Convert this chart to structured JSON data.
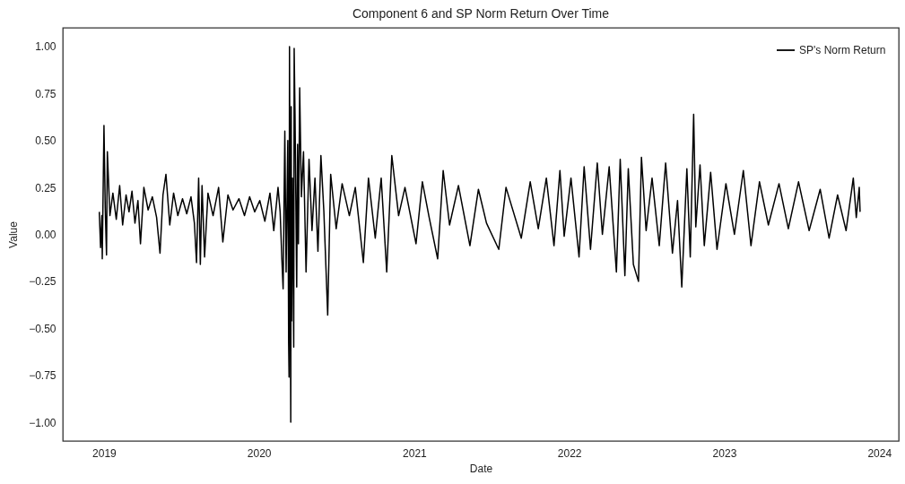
{
  "chart_data": {
    "type": "line",
    "title": "Component 6 and SP Norm Return Over Time",
    "xlabel": "Date",
    "ylabel": "Value",
    "xlim": [
      "2018-09-26",
      "2024-02-16"
    ],
    "xticks": [
      "2019",
      "2020",
      "2021",
      "2022",
      "2023",
      "2024"
    ],
    "ylim": [
      -1.1,
      1.1
    ],
    "yticks": [
      {
        "value": -1,
        "label": "−1.00"
      },
      {
        "value": -0.75,
        "label": "−0.75"
      },
      {
        "value": -0.5,
        "label": "−0.50"
      },
      {
        "value": -0.25,
        "label": "−0.25"
      },
      {
        "value": 0,
        "label": "0.00"
      },
      {
        "value": 0.25,
        "label": "0.25"
      },
      {
        "value": 0.5,
        "label": "0.50"
      },
      {
        "value": 0.75,
        "label": "0.75"
      },
      {
        "value": 1,
        "label": "1.00"
      }
    ],
    "grid": false,
    "legend": "top right",
    "line_style": "solid",
    "x": [
      "2018-12-21",
      "2018-12-24",
      "2018-12-27",
      "2018-12-28",
      "2019-01-01",
      "2019-01-04",
      "2019-01-07",
      "2019-01-09",
      "2019-01-15",
      "2019-01-22",
      "2019-01-30",
      "2019-02-07",
      "2019-02-14",
      "2019-02-22",
      "2019-03-01",
      "2019-03-08",
      "2019-03-15",
      "2019-03-22",
      "2019-03-28",
      "2019-04-05",
      "2019-04-15",
      "2019-04-25",
      "2019-05-05",
      "2019-05-13",
      "2019-05-20",
      "2019-05-27",
      "2019-06-05",
      "2019-06-14",
      "2019-06-24",
      "2019-07-05",
      "2019-07-15",
      "2019-07-25",
      "2019-08-02",
      "2019-08-07",
      "2019-08-12",
      "2019-08-16",
      "2019-08-20",
      "2019-08-26",
      "2019-09-03",
      "2019-09-15",
      "2019-09-28",
      "2019-10-08",
      "2019-10-20",
      "2019-11-01",
      "2019-11-15",
      "2019-11-28",
      "2019-12-10",
      "2019-12-22",
      "2020-01-03",
      "2020-01-15",
      "2020-01-27",
      "2020-02-05",
      "2020-02-15",
      "2020-02-20",
      "2020-02-24",
      "2020-02-27",
      "2020-03-02",
      "2020-03-05",
      "2020-03-09",
      "2020-03-11",
      "2020-03-12",
      "2020-03-13",
      "2020-03-16",
      "2020-03-17",
      "2020-03-18",
      "2020-03-20",
      "2020-03-23",
      "2020-03-24",
      "2020-03-26",
      "2020-03-30",
      "2020-04-01",
      "2020-04-03",
      "2020-04-06",
      "2020-04-10",
      "2020-04-15",
      "2020-04-21",
      "2020-04-28",
      "2020-05-05",
      "2020-05-12",
      "2020-05-19",
      "2020-05-26",
      "2020-06-02",
      "2020-06-11",
      "2020-06-18",
      "2020-07-01",
      "2020-07-15",
      "2020-08-01",
      "2020-08-15",
      "2020-09-03",
      "2020-09-15",
      "2020-10-01",
      "2020-10-15",
      "2020-10-28",
      "2020-11-09",
      "2020-11-25",
      "2020-12-10",
      "2021-01-05",
      "2021-01-20",
      "2021-02-05",
      "2021-02-25",
      "2021-03-10",
      "2021-03-25",
      "2021-04-15",
      "2021-05-12",
      "2021-06-01",
      "2021-06-20",
      "2021-07-19",
      "2021-08-05",
      "2021-09-10",
      "2021-10-01",
      "2021-10-20",
      "2021-11-08",
      "2021-11-26",
      "2021-12-10",
      "2021-12-20",
      "2022-01-05",
      "2022-01-24",
      "2022-02-05",
      "2022-02-20",
      "2022-03-08",
      "2022-03-20",
      "2022-04-05",
      "2022-04-22",
      "2022-05-01",
      "2022-05-12",
      "2022-05-20",
      "2022-06-01",
      "2022-06-13",
      "2022-06-20",
      "2022-07-01",
      "2022-07-15",
      "2022-08-01",
      "2022-08-16",
      "2022-09-01",
      "2022-09-13",
      "2022-09-23",
      "2022-10-05",
      "2022-10-13",
      "2022-10-21",
      "2022-10-26",
      "2022-11-05",
      "2022-11-15",
      "2022-11-30",
      "2022-12-15",
      "2023-01-05",
      "2023-01-25",
      "2023-02-15",
      "2023-03-05",
      "2023-03-25",
      "2023-04-15",
      "2023-05-10",
      "2023-06-01",
      "2023-06-25",
      "2023-07-20",
      "2023-08-15",
      "2023-09-05",
      "2023-09-25",
      "2023-10-15",
      "2023-11-01",
      "2023-11-08",
      "2023-11-15",
      "2023-11-17"
    ],
    "series": [
      {
        "name": "SP's Norm Return",
        "color": "#000000",
        "values": [
          0.12,
          -0.07,
          0.1,
          -0.13,
          0.58,
          0.14,
          -0.11,
          0.44,
          0.1,
          0.22,
          0.08,
          0.26,
          0.05,
          0.21,
          0.12,
          0.23,
          0.06,
          0.18,
          -0.05,
          0.25,
          0.13,
          0.2,
          0.09,
          -0.1,
          0.21,
          0.32,
          0.05,
          0.22,
          0.1,
          0.19,
          0.11,
          0.2,
          0.06,
          -0.15,
          0.3,
          -0.16,
          0.26,
          -0.12,
          0.22,
          0.1,
          0.25,
          -0.04,
          0.21,
          0.13,
          0.19,
          0.1,
          0.2,
          0.12,
          0.18,
          0.07,
          0.22,
          0.02,
          0.25,
          0.12,
          -0.13,
          -0.29,
          0.55,
          -0.2,
          0.5,
          -0.58,
          -0.76,
          1.0,
          -1.0,
          0.68,
          -0.46,
          0.3,
          -0.6,
          0.99,
          0.64,
          -0.28,
          0.48,
          -0.05,
          0.78,
          0.2,
          0.44,
          -0.2,
          0.4,
          0.02,
          0.3,
          -0.09,
          0.42,
          0.12,
          -0.43,
          0.32,
          0.03,
          0.27,
          0.1,
          0.25,
          -0.15,
          0.3,
          -0.02,
          0.3,
          -0.2,
          0.42,
          0.1,
          0.25,
          -0.05,
          0.28,
          0.09,
          -0.13,
          0.34,
          0.05,
          0.26,
          -0.06,
          0.24,
          0.06,
          -0.08,
          0.25,
          -0.02,
          0.28,
          0.03,
          0.3,
          -0.06,
          0.34,
          -0.01,
          0.3,
          -0.12,
          0.36,
          -0.08,
          0.38,
          0.0,
          0.36,
          -0.2,
          0.4,
          -0.22,
          0.35,
          -0.16,
          -0.25,
          0.41,
          0.02,
          0.3,
          -0.06,
          0.38,
          -0.1,
          0.18,
          -0.28,
          0.35,
          -0.12,
          0.64,
          0.04,
          0.37,
          -0.06,
          0.33,
          -0.08,
          0.27,
          0.0,
          0.34,
          -0.06,
          0.28,
          0.05,
          0.27,
          0.03,
          0.28,
          0.02,
          0.24,
          -0.02,
          0.21,
          0.02,
          0.3,
          0.09,
          0.25,
          0.12
        ]
      }
    ]
  }
}
